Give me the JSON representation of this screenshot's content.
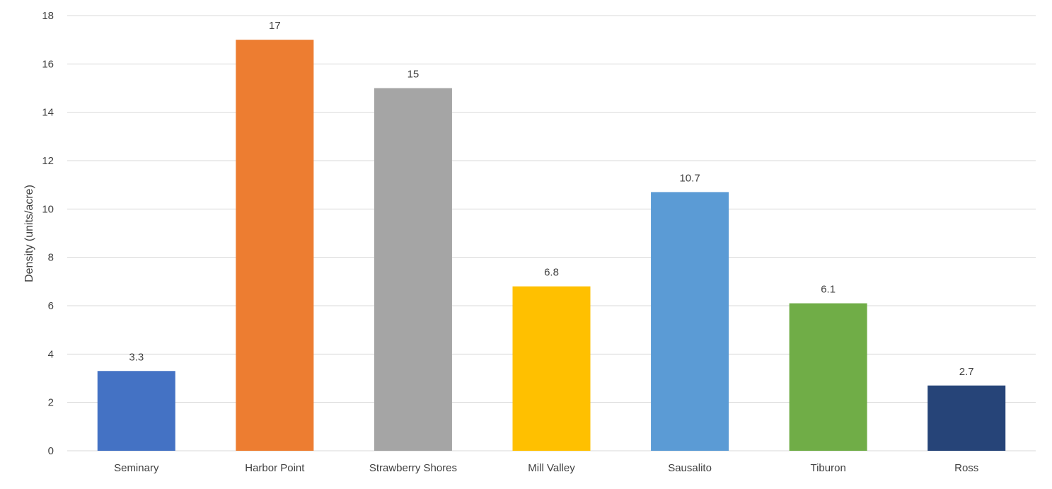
{
  "chart_data": {
    "type": "bar",
    "title": "",
    "xlabel": "",
    "ylabel": "Density (units/acre)",
    "categories": [
      "Seminary",
      "Harbor Point",
      "Strawberry Shores",
      "Mill Valley",
      "Sausalito",
      "Tiburon",
      "Ross"
    ],
    "values": [
      3.3,
      17,
      15,
      6.8,
      10.7,
      6.1,
      2.7
    ],
    "value_labels": [
      "3.3",
      "17",
      "15",
      "6.8",
      "10.7",
      "6.1",
      "2.7"
    ],
    "colors": [
      "#4472C4",
      "#ED7D31",
      "#A5A5A5",
      "#FFC000",
      "#5B9BD5",
      "#70AD47",
      "#264478"
    ],
    "ylim": [
      0,
      18
    ],
    "yticks": [
      0,
      2,
      4,
      6,
      8,
      10,
      12,
      14,
      16,
      18
    ],
    "grid": true,
    "legend": "none"
  }
}
